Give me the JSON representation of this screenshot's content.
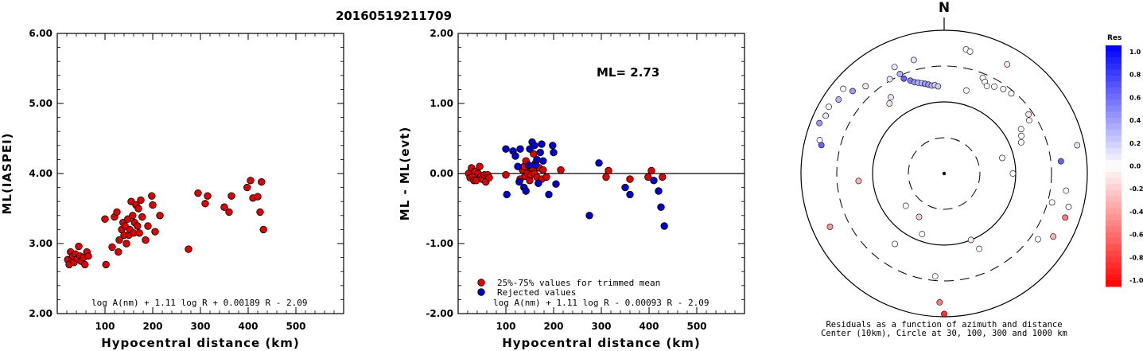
{
  "title": "20160519211709",
  "chart_data": [
    {
      "type": "scatter",
      "title": "",
      "xlabel": "Hypocentral distance (km)",
      "ylabel": "ML(IASPEI)",
      "xlim": [
        0,
        600
      ],
      "ylim": [
        2.0,
        6.0
      ],
      "xticks": [
        "100",
        "200",
        "300",
        "400",
        "500"
      ],
      "yticks": [
        "2.00",
        "3.00",
        "4.00",
        "5.00",
        "6.00"
      ],
      "formula": "log A(nm) + 1.11 log R + 0.00189 R - 2.09",
      "marker_color": "#dd0000",
      "points": [
        [
          22,
          2.77
        ],
        [
          25,
          2.7
        ],
        [
          28,
          2.88
        ],
        [
          30,
          2.78
        ],
        [
          33,
          2.82
        ],
        [
          35,
          2.73
        ],
        [
          38,
          2.85
        ],
        [
          42,
          2.78
        ],
        [
          45,
          2.96
        ],
        [
          48,
          2.82
        ],
        [
          50,
          2.75
        ],
        [
          55,
          2.8
        ],
        [
          58,
          2.7
        ],
        [
          62,
          2.88
        ],
        [
          65,
          2.82
        ],
        [
          100,
          3.35
        ],
        [
          102,
          2.7
        ],
        [
          115,
          2.95
        ],
        [
          120,
          3.38
        ],
        [
          125,
          3.45
        ],
        [
          128,
          2.88
        ],
        [
          130,
          3.05
        ],
        [
          135,
          3.2
        ],
        [
          138,
          3.3
        ],
        [
          140,
          3.12
        ],
        [
          142,
          3.25
        ],
        [
          145,
          3.0
        ],
        [
          148,
          3.35
        ],
        [
          150,
          3.12
        ],
        [
          152,
          3.2
        ],
        [
          155,
          3.6
        ],
        [
          158,
          3.4
        ],
        [
          160,
          3.15
        ],
        [
          162,
          3.3
        ],
        [
          165,
          3.55
        ],
        [
          168,
          3.25
        ],
        [
          170,
          3.5
        ],
        [
          172,
          3.15
        ],
        [
          175,
          3.62
        ],
        [
          178,
          3.38
        ],
        [
          185,
          3.05
        ],
        [
          190,
          3.25
        ],
        [
          198,
          3.68
        ],
        [
          200,
          3.55
        ],
        [
          205,
          3.17
        ],
        [
          215,
          3.4
        ],
        [
          275,
          2.92
        ],
        [
          295,
          3.72
        ],
        [
          310,
          3.57
        ],
        [
          315,
          3.68
        ],
        [
          350,
          3.52
        ],
        [
          360,
          3.45
        ],
        [
          365,
          3.68
        ],
        [
          398,
          3.8
        ],
        [
          405,
          3.9
        ],
        [
          410,
          3.65
        ],
        [
          420,
          3.67
        ],
        [
          425,
          3.45
        ],
        [
          428,
          3.88
        ],
        [
          432,
          3.2
        ]
      ]
    },
    {
      "type": "scatter",
      "title": "",
      "xlabel": "Hypocentral distance (km)",
      "ylabel": "ML - ML(evt)",
      "xlim": [
        0,
        600
      ],
      "ylim": [
        -2.0,
        2.0
      ],
      "xticks": [
        "100",
        "200",
        "300",
        "400",
        "500"
      ],
      "yticks": [
        "-2.00",
        "-1.00",
        "0.00",
        "1.00",
        "2.00"
      ],
      "ml_label": "ML=  2.73",
      "formula": "log A(nm) + 1.11 log R - 0.00093 R - 2.09",
      "legend": [
        {
          "name": "25%-75% values for trimmed mean",
          "color": "#dd0000"
        },
        {
          "name": "Rejected values",
          "color": "#0000cc"
        }
      ],
      "series": [
        {
          "name": "25%-75% values for trimmed mean",
          "color": "#dd0000",
          "points": [
            [
              22,
              0.0
            ],
            [
              25,
              -0.06
            ],
            [
              28,
              0.08
            ],
            [
              30,
              -0.05
            ],
            [
              33,
              -0.1
            ],
            [
              35,
              0.03
            ],
            [
              38,
              -0.1
            ],
            [
              42,
              0.0
            ],
            [
              45,
              0.1
            ],
            [
              48,
              -0.04
            ],
            [
              50,
              -0.08
            ],
            [
              55,
              -0.02
            ],
            [
              58,
              -0.12
            ],
            [
              62,
              -0.02
            ],
            [
              65,
              -0.06
            ],
            [
              100,
              -0.02
            ],
            [
              130,
              -0.08
            ],
            [
              135,
              0.05
            ],
            [
              138,
              0.1
            ],
            [
              140,
              -0.04
            ],
            [
              142,
              0.18
            ],
            [
              145,
              0.0
            ],
            [
              148,
              0.1
            ],
            [
              150,
              -0.1
            ],
            [
              152,
              -0.02
            ],
            [
              155,
              0.08
            ],
            [
              158,
              0.28
            ],
            [
              160,
              0.0
            ],
            [
              162,
              0.15
            ],
            [
              165,
              -0.05
            ],
            [
              170,
              0.08
            ],
            [
              175,
              -0.08
            ],
            [
              178,
              0.05
            ],
            [
              185,
              -0.05
            ],
            [
              215,
              0.05
            ],
            [
              310,
              -0.05
            ],
            [
              315,
              0.04
            ],
            [
              360,
              -0.08
            ],
            [
              398,
              -0.05
            ],
            [
              405,
              0.04
            ],
            [
              428,
              -0.05
            ]
          ]
        },
        {
          "name": "Rejected values",
          "color": "#0000cc",
          "points": [
            [
              100,
              0.35
            ],
            [
              102,
              -0.3
            ],
            [
              115,
              0.32
            ],
            [
              120,
              0.25
            ],
            [
              125,
              0.1
            ],
            [
              128,
              -0.12
            ],
            [
              130,
              0.35
            ],
            [
              138,
              -0.2
            ],
            [
              142,
              -0.25
            ],
            [
              148,
              0.12
            ],
            [
              150,
              0.35
            ],
            [
              155,
              0.45
            ],
            [
              160,
              0.4
            ],
            [
              162,
              0.12
            ],
            [
              165,
              0.2
            ],
            [
              168,
              -0.14
            ],
            [
              172,
              0.3
            ],
            [
              175,
              0.42
            ],
            [
              178,
              0.18
            ],
            [
              190,
              -0.3
            ],
            [
              198,
              0.4
            ],
            [
              200,
              0.3
            ],
            [
              205,
              -0.15
            ],
            [
              275,
              -0.6
            ],
            [
              295,
              0.15
            ],
            [
              350,
              -0.2
            ],
            [
              360,
              -0.3
            ],
            [
              410,
              -0.1
            ],
            [
              420,
              -0.25
            ],
            [
              425,
              -0.48
            ],
            [
              432,
              -0.75
            ]
          ]
        }
      ]
    },
    {
      "type": "polar-scatter",
      "north_label": "N",
      "caption_1": "Residuals as a function of azimuth and distance",
      "caption_2": "Center (10km), Circle at 30, 100, 300 and 1000 km",
      "colorbar": {
        "title": "Res",
        "labels": [
          "1.0",
          "0.8",
          "0.6",
          "0.4",
          "0.2",
          "0.0",
          "-0.2",
          "-0.4",
          "-0.6",
          "-0.8",
          "-1.0"
        ]
      },
      "stations_azimuth_deg_radius_frac_residual": [
        [
          10,
          0.88,
          0.0
        ],
        [
          12,
          0.87,
          0.0
        ],
        [
          15,
          0.6,
          0.0
        ],
        [
          22,
          0.72,
          0.0
        ],
        [
          24,
          0.7,
          0.0
        ],
        [
          26,
          0.68,
          0.0
        ],
        [
          30,
          0.7,
          0.0
        ],
        [
          35,
          0.72,
          0.0
        ],
        [
          40,
          0.73,
          0.0
        ],
        [
          345,
          0.82,
          0.1
        ],
        [
          335,
          0.82,
          0.1
        ],
        [
          330,
          0.76,
          0.1
        ],
        [
          336,
          0.76,
          0.3
        ],
        [
          337,
          0.72,
          0.6
        ],
        [
          340,
          0.69,
          0.5
        ],
        [
          342,
          0.67,
          0.4
        ],
        [
          344,
          0.66,
          0.3
        ],
        [
          346,
          0.65,
          0.3
        ],
        [
          348,
          0.64,
          0.4
        ],
        [
          350,
          0.63,
          0.4
        ],
        [
          352,
          0.62,
          0.3
        ],
        [
          354,
          0.62,
          0.2
        ],
        [
          356,
          0.61,
          0.2
        ],
        [
          325,
          0.65,
          0.1
        ],
        [
          322,
          0.62,
          -0.1
        ],
        [
          318,
          0.82,
          -0.1
        ],
        [
          310,
          0.92,
          0.0
        ],
        [
          312,
          0.86,
          0.4
        ],
        [
          305,
          0.9,
          0.3
        ],
        [
          300,
          0.93,
          0.0
        ],
        [
          296,
          0.92,
          0.1
        ],
        [
          292,
          0.94,
          0.4
        ],
        [
          285,
          0.9,
          0.0
        ],
        [
          283,
          0.88,
          0.6
        ],
        [
          265,
          0.6,
          -0.3
        ],
        [
          245,
          0.88,
          -0.4
        ],
        [
          230,
          0.35,
          0.0
        ],
        [
          215,
          0.6,
          0.0
        ],
        [
          210,
          0.35,
          -0.2
        ],
        [
          200,
          0.45,
          0.0
        ],
        [
          185,
          0.72,
          0.0
        ],
        [
          182,
          0.9,
          -0.5
        ],
        [
          180,
          0.98,
          -0.8
        ],
        [
          158,
          0.5,
          -0.1
        ],
        [
          155,
          0.58,
          0.0
        ],
        [
          125,
          0.8,
          0.0
        ],
        [
          120,
          0.88,
          -0.3
        ],
        [
          110,
          0.9,
          -0.5
        ],
        [
          105,
          0.78,
          0.0
        ],
        [
          98,
          0.86,
          0.0
        ],
        [
          84,
          0.82,
          0.6
        ],
        [
          78,
          0.95,
          0.1
        ],
        [
          90,
          0.48,
          0.0
        ],
        [
          75,
          0.42,
          0.0
        ],
        [
          68,
          0.58,
          0.0
        ],
        [
          64,
          0.6,
          0.0
        ],
        [
          60,
          0.62,
          0.0
        ],
        [
          58,
          0.7,
          0.0
        ],
        [
          55,
          0.72,
          -0.1
        ],
        [
          30,
          0.88,
          -0.1
        ],
        [
          105,
          0.9,
          0.0
        ]
      ]
    }
  ]
}
